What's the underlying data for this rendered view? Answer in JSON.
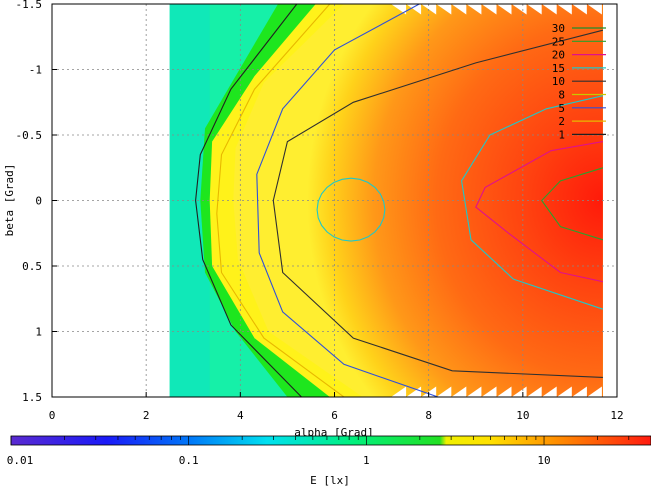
{
  "chart_data": {
    "type": "heatmap",
    "title": "",
    "xlabel": "alpha [Grad]",
    "ylabel": "beta [Grad]",
    "xlim": [
      0,
      12
    ],
    "ylim": [
      -1.5,
      1.5
    ],
    "y_reversed": true,
    "grid": true,
    "x_ticks": [
      0,
      2,
      4,
      6,
      8,
      10,
      12
    ],
    "y_ticks": [
      -1.5,
      -1,
      -0.5,
      0,
      0.5,
      1,
      1.5
    ],
    "x_tick_labels": [
      "0",
      "2",
      "4",
      "6",
      "8",
      "10",
      "12"
    ],
    "y_tick_labels": [
      "-1.5",
      "-1",
      "-0.5",
      "0",
      "0.5",
      "1",
      "1.5"
    ],
    "data_extent": {
      "alpha_min": 2.5,
      "alpha_max": 11.7,
      "beta_min": -1.5,
      "beta_max": 1.5
    },
    "peak": {
      "alpha": 11.5,
      "beta": 0.0,
      "value": 30
    },
    "contour_levels": [
      30,
      25,
      20,
      15,
      10,
      8,
      5,
      2,
      1
    ],
    "legend": {
      "placement": "top-right",
      "entries": [
        {
          "label": "30",
          "color": "#1f8f2f"
        },
        {
          "label": "25",
          "color": "#2ca02c"
        },
        {
          "label": "20",
          "color": "#e0108c"
        },
        {
          "label": "15",
          "color": "#20c8c8"
        },
        {
          "label": "10",
          "color": "#303030"
        },
        {
          "label": "8",
          "color": "#c8c800"
        },
        {
          "label": "5",
          "color": "#3050d8"
        },
        {
          "label": "2",
          "color": "#e8b800"
        },
        {
          "label": "1",
          "color": "#202020"
        }
      ]
    },
    "colorbar": {
      "label": "E [lx]",
      "scale": "log",
      "range": [
        0.01,
        40
      ],
      "tick_labels": [
        "0.01",
        "0.1",
        "1",
        "10"
      ],
      "tick_values": [
        0.01,
        0.1,
        1,
        10
      ]
    }
  }
}
